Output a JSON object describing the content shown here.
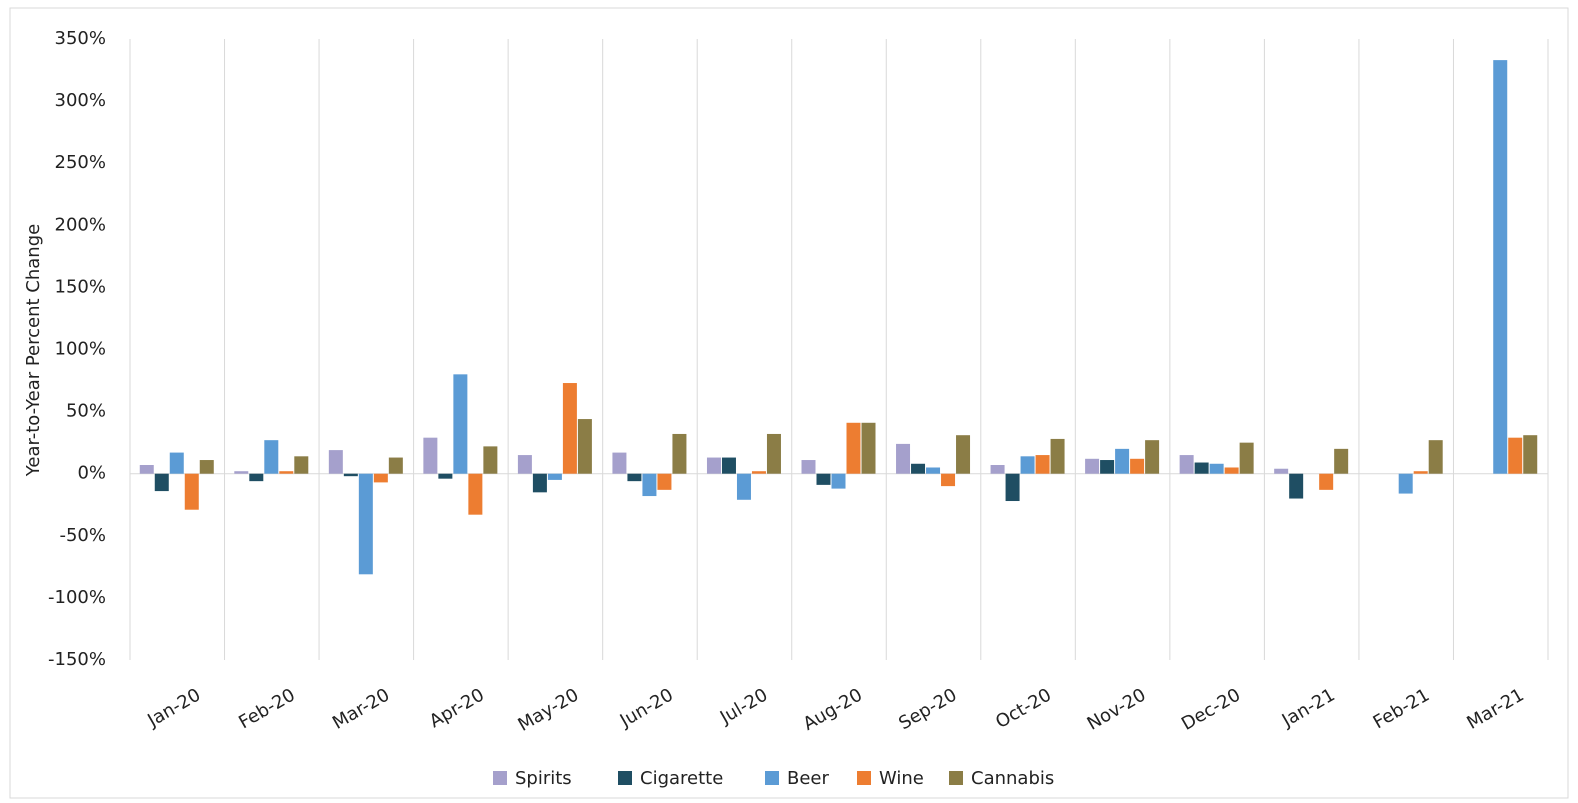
{
  "chart_data": {
    "type": "bar",
    "y_label": "Year-to-Year Percent Change",
    "categories": [
      "Jan-20",
      "Feb-20",
      "Mar-20",
      "Apr-20",
      "May-20",
      "Jun-20",
      "Jul-20",
      "Aug-20",
      "Sep-20",
      "Oct-20",
      "Nov-20",
      "Dec-20",
      "Jan-21",
      "Feb-21",
      "Mar-21"
    ],
    "series": [
      {
        "name": "Spirits",
        "color": "#a5a0cc",
        "values": [
          7,
          2,
          19,
          29,
          15,
          17,
          13,
          11,
          24,
          7,
          12,
          15,
          4,
          null,
          null
        ]
      },
      {
        "name": "Cigarette",
        "color": "#1f4e63",
        "values": [
          -14,
          -6,
          -2,
          -4,
          -15,
          -6,
          13,
          -9,
          8,
          -22,
          11,
          9,
          -20,
          null,
          null
        ]
      },
      {
        "name": "Beer",
        "color": "#5b9bd5",
        "values": [
          17,
          27,
          -81,
          80,
          -5,
          -18,
          -21,
          -12,
          5,
          14,
          20,
          8,
          null,
          -16,
          333
        ]
      },
      {
        "name": "Wine",
        "color": "#ed7d31",
        "values": [
          -29,
          2,
          -7,
          -33,
          73,
          -13,
          2,
          41,
          -10,
          15,
          12,
          5,
          -13,
          2,
          29
        ]
      },
      {
        "name": "Cannabis",
        "color": "#8b7d46",
        "values": [
          11,
          14,
          13,
          22,
          44,
          32,
          32,
          41,
          31,
          28,
          27,
          25,
          20,
          27,
          31
        ]
      }
    ],
    "ylim": [
      -150,
      350
    ],
    "yticks": [
      {
        "value": -150,
        "label": "-150%"
      },
      {
        "value": -100,
        "label": "-100%"
      },
      {
        "value": -50,
        "label": "-50%"
      },
      {
        "value": 0,
        "label": "0%"
      },
      {
        "value": 50,
        "label": "50%"
      },
      {
        "value": 100,
        "label": "100%"
      },
      {
        "value": 150,
        "label": "150%"
      },
      {
        "value": 200,
        "label": "200%"
      },
      {
        "value": 250,
        "label": "250%"
      },
      {
        "value": 300,
        "label": "300%"
      },
      {
        "value": 350,
        "label": "350%"
      }
    ],
    "legend": "bottom"
  }
}
